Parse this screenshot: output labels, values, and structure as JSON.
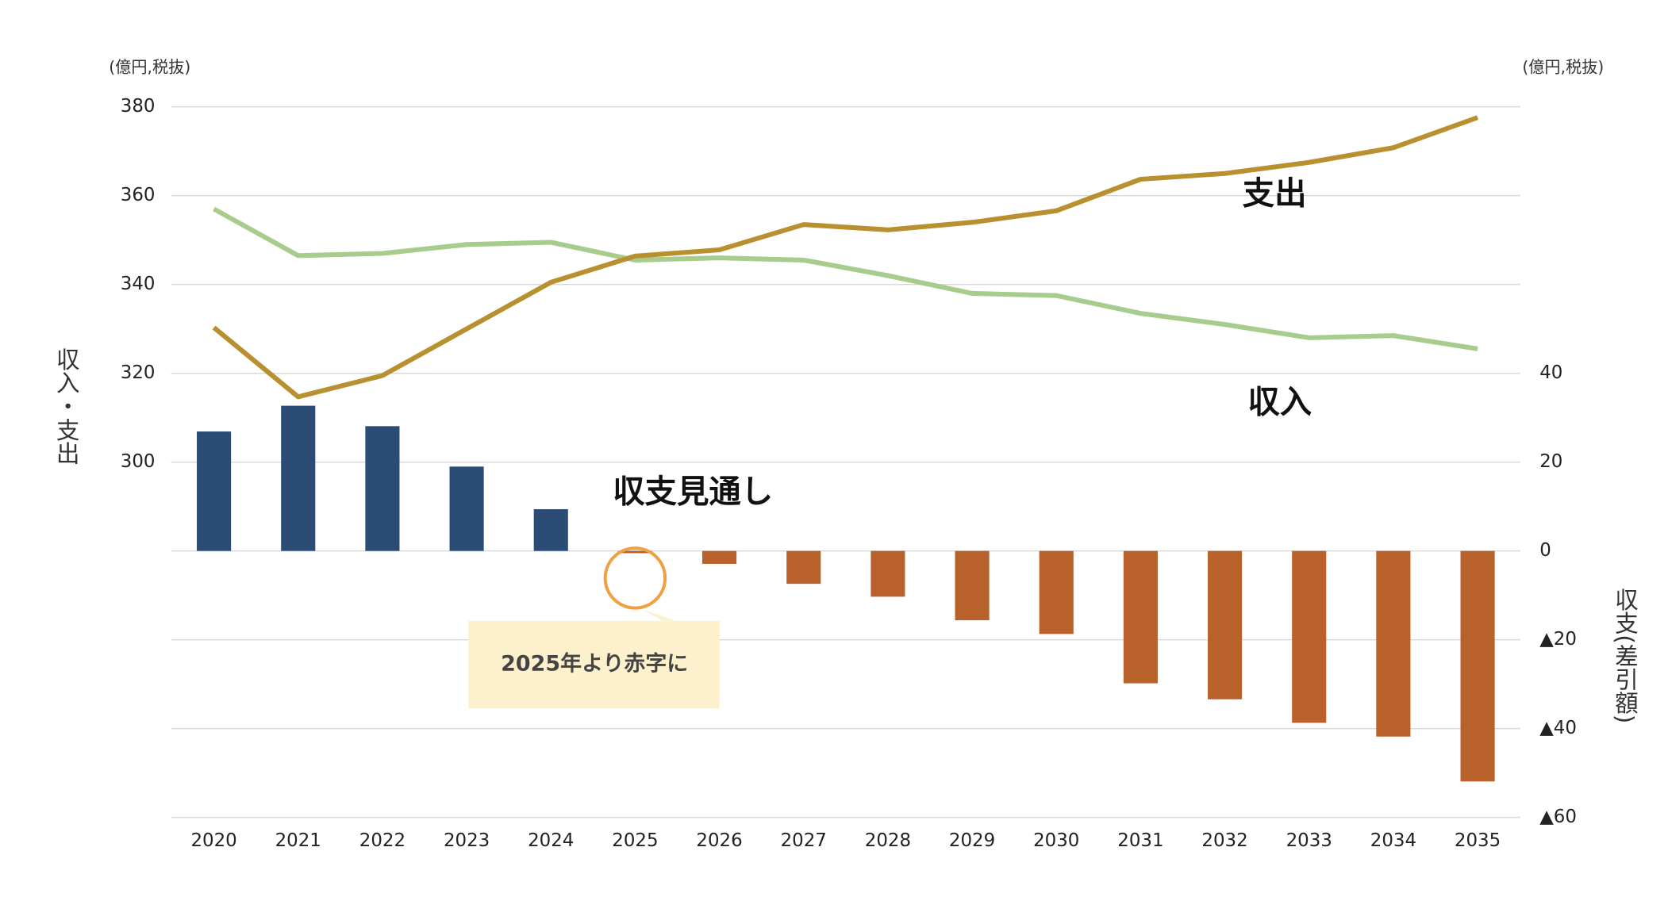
{
  "chart_data": {
    "type": "bar_line",
    "y_unit_label": "(億円,税抜)",
    "y2_unit_label": "(億円,税抜)",
    "ylabel": "収入・支出",
    "y2label": "収支(差引額)",
    "categories": [
      "2020",
      "2021",
      "2022",
      "2023",
      "2024",
      "2025",
      "2026",
      "2027",
      "2028",
      "2029",
      "2030",
      "2031",
      "2032",
      "2033",
      "2034",
      "2035"
    ],
    "ylim": [
      220,
      380
    ],
    "yticks": [
      300,
      320,
      340,
      360,
      380
    ],
    "y2lim": [
      -60,
      100
    ],
    "y2ticks": [
      {
        "value": -60,
        "label": "▲60"
      },
      {
        "value": -40,
        "label": "▲40"
      },
      {
        "value": -20,
        "label": "▲20"
      },
      0,
      20,
      40
    ],
    "grid": true,
    "series": [
      {
        "name": "収入",
        "kind": "line",
        "color": "#a8cc8c",
        "values": [
          357,
          346.5,
          347,
          349,
          349.5,
          345.5,
          346,
          345.5,
          342,
          338,
          337.5,
          333.5,
          331,
          328,
          328.5,
          325.5
        ]
      },
      {
        "name": "支出",
        "kind": "line",
        "color": "#b8902f",
        "values": [
          330.3,
          314.7,
          319.5,
          330,
          340.5,
          346.4,
          347.8,
          353.5,
          352.3,
          354,
          356.6,
          363.7,
          365,
          367.5,
          370.8,
          377.6
        ]
      },
      {
        "name": "収支見通し",
        "kind": "bar",
        "axis": "y2",
        "color": "#2b4c74",
        "negative_color": "#b8612b",
        "values": [
          26.9,
          32.7,
          28.1,
          19,
          9.4,
          -0.5,
          -2.9,
          -7.4,
          -10.3,
          -15.6,
          -18.7,
          -29.8,
          -33.4,
          -38.7,
          -41.8,
          -51.9
        ]
      }
    ],
    "annotation": "2025年より赤字に"
  }
}
